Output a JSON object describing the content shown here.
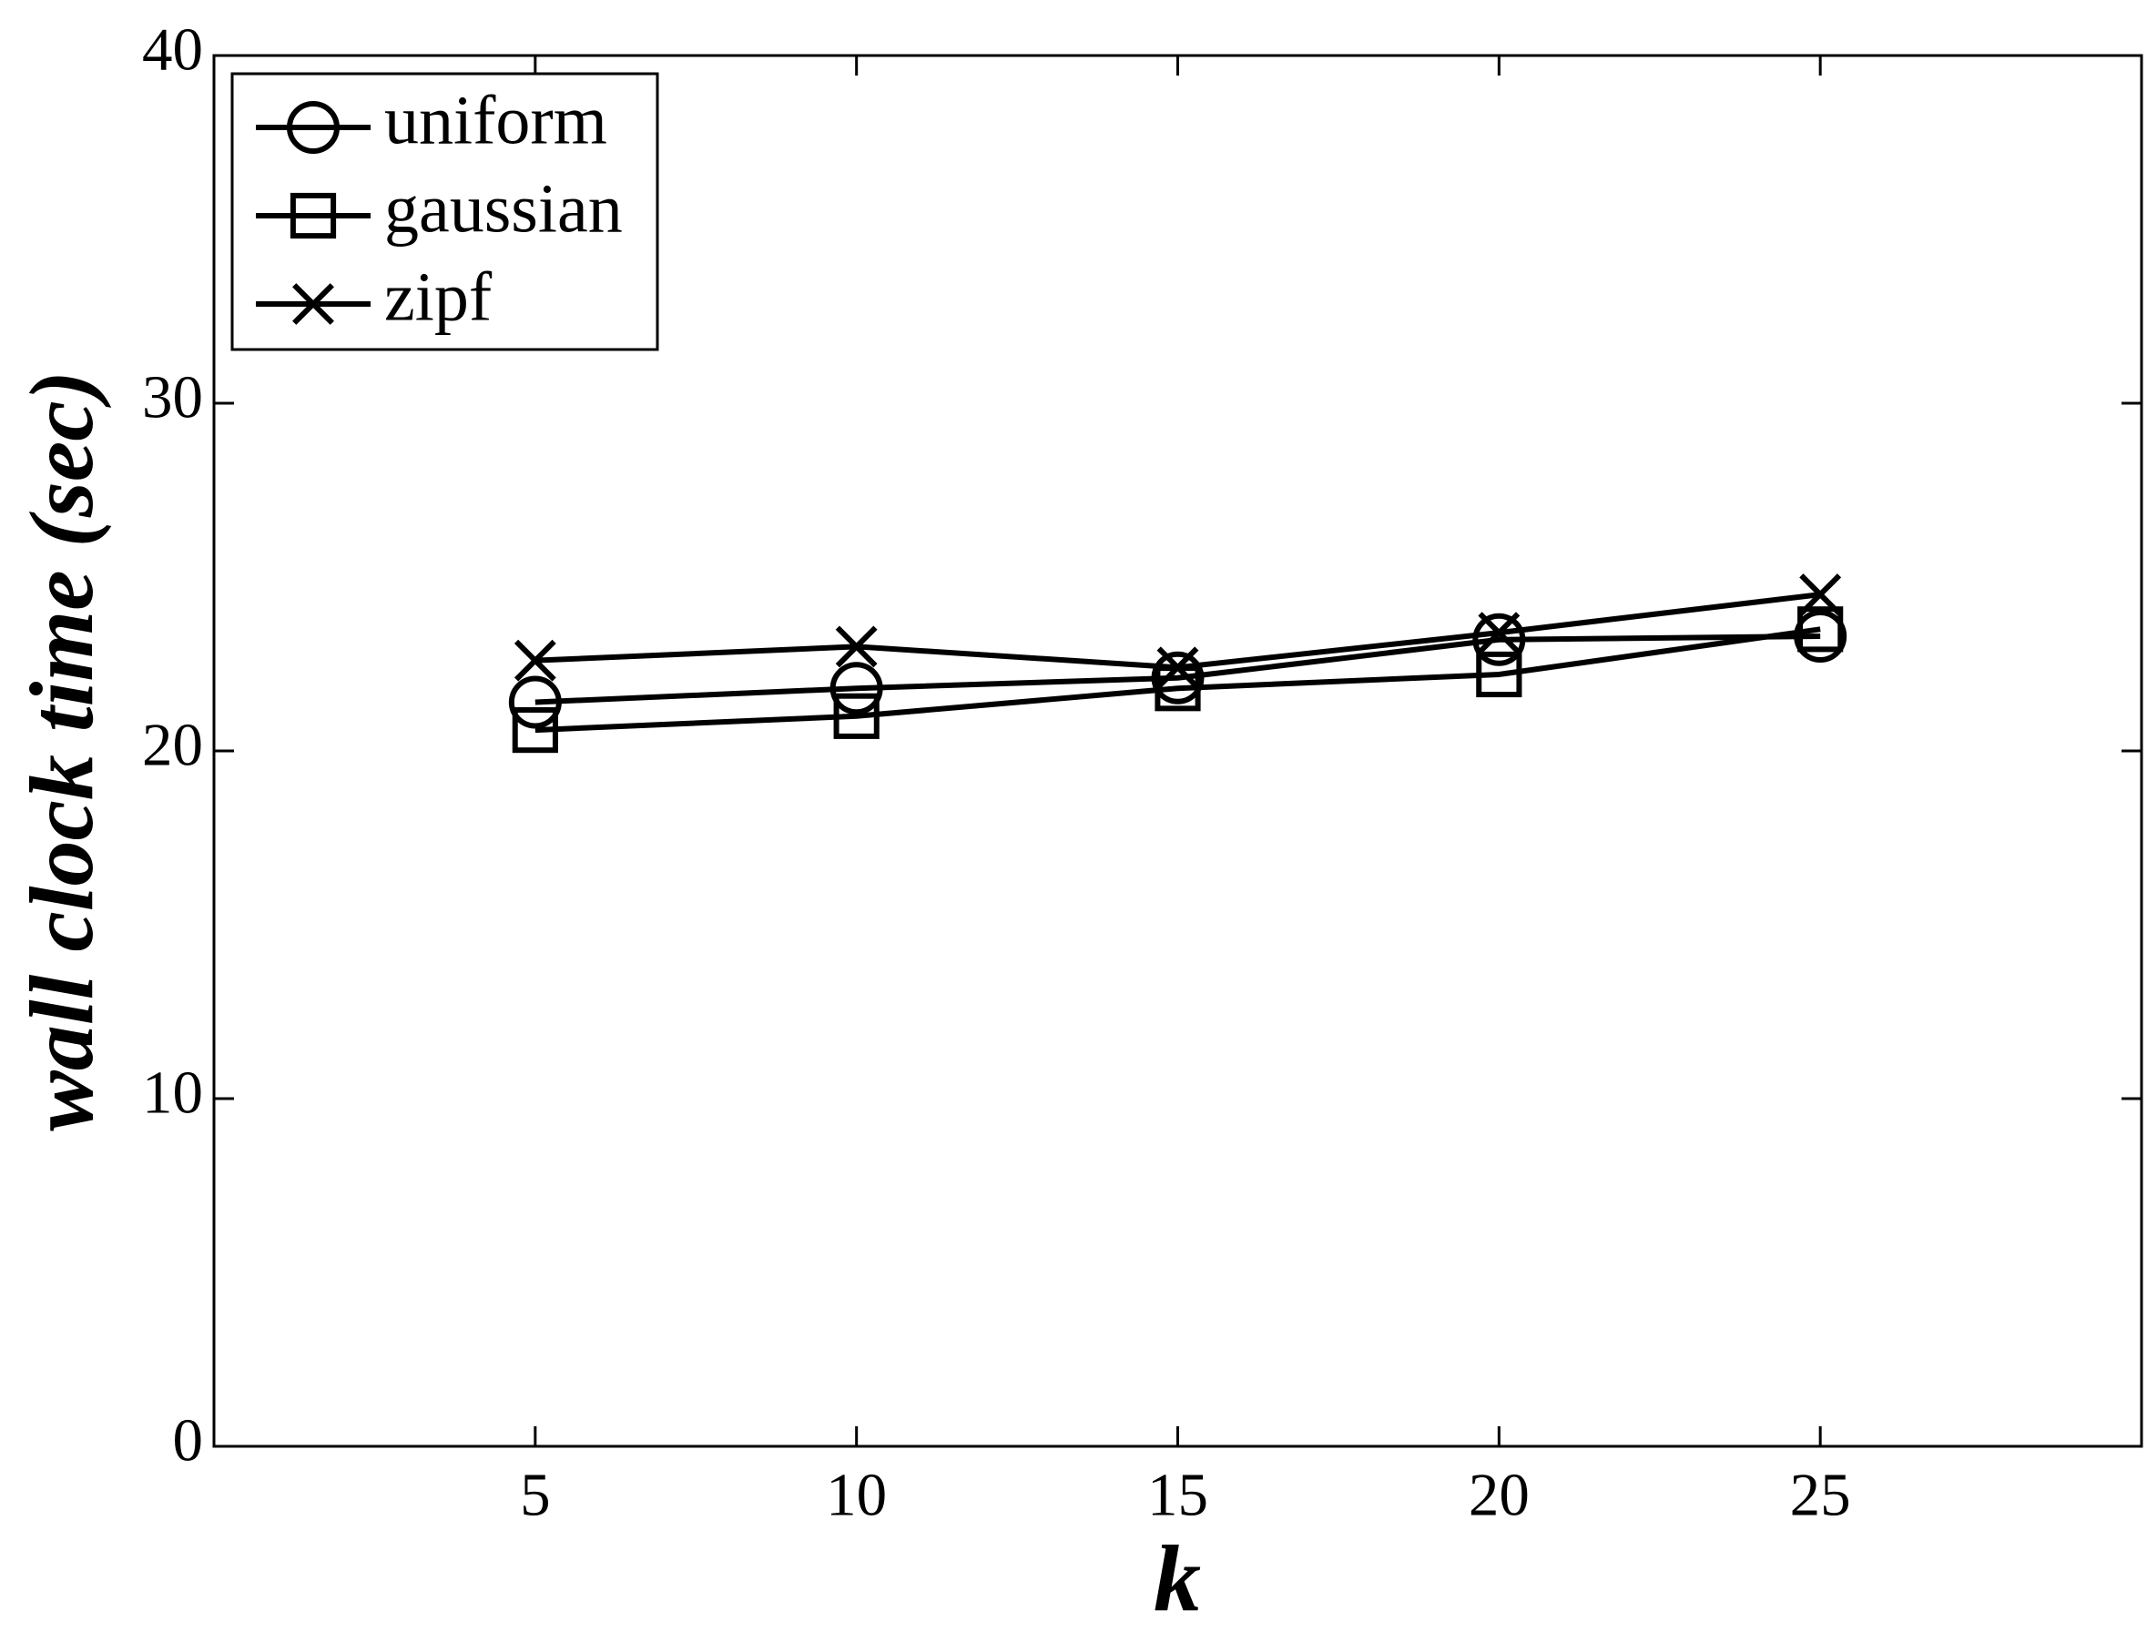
{
  "chart_data": {
    "type": "line",
    "x_label": "k",
    "y_label": "wall clock time (sec)",
    "x": [
      5,
      10,
      15,
      20,
      25
    ],
    "series": [
      {
        "name": "uniform",
        "color": "#000000",
        "marker": "circle",
        "values": [
          21.4,
          21.8,
          22.1,
          23.2,
          23.3
        ]
      },
      {
        "name": "gaussian",
        "color": "#000000",
        "marker": "square",
        "values": [
          20.6,
          21.0,
          21.8,
          22.2,
          23.5
        ]
      },
      {
        "name": "zipf",
        "color": "#000000",
        "marker": "x",
        "values": [
          22.6,
          23.0,
          22.4,
          23.4,
          24.5
        ]
      }
    ],
    "xlim": [
      0,
      30
    ],
    "xticks": [
      5,
      10,
      15,
      20,
      25
    ],
    "ylim": [
      0,
      40
    ],
    "yticks": [
      0,
      10,
      20,
      30,
      40
    ],
    "legend": "upper-left",
    "grid": false
  }
}
